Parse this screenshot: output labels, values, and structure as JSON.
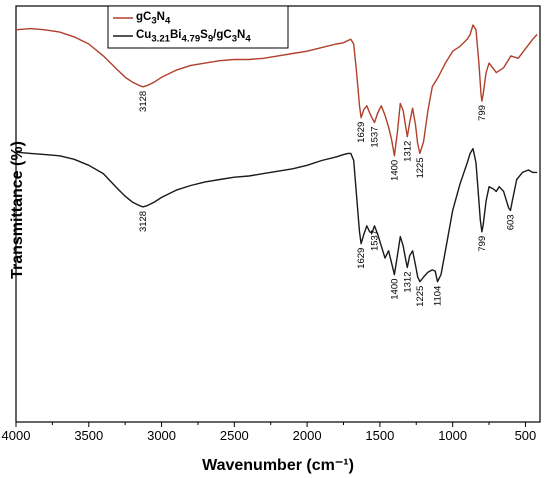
{
  "chart_data": {
    "type": "line",
    "xlabel": "Wavenumber (cm⁻¹)",
    "ylabel": "Transmittance (%)",
    "xlim": [
      4000,
      400
    ],
    "x_ticks": [
      "4000",
      "3500",
      "3000",
      "2500",
      "2000",
      "1500",
      "1000",
      "500"
    ],
    "y_ticks_labeled": false,
    "grid": false,
    "legend_position": "top-left",
    "series": [
      {
        "name": "gC3N4",
        "name_html": "gC<sub>3</sub>N<sub>4</sub>",
        "color": "#b0402b",
        "x": [
          4000,
          3900,
          3800,
          3700,
          3600,
          3500,
          3400,
          3300,
          3250,
          3200,
          3150,
          3128,
          3100,
          3050,
          3000,
          2900,
          2800,
          2700,
          2600,
          2500,
          2400,
          2300,
          2200,
          2100,
          2000,
          1900,
          1800,
          1750,
          1720,
          1700,
          1680,
          1660,
          1640,
          1629,
          1610,
          1590,
          1570,
          1555,
          1537,
          1515,
          1490,
          1465,
          1440,
          1420,
          1400,
          1380,
          1360,
          1340,
          1325,
          1312,
          1295,
          1275,
          1255,
          1240,
          1225,
          1200,
          1170,
          1140,
          1100,
          1050,
          1000,
          950,
          900,
          880,
          860,
          840,
          820,
          805,
          799,
          790,
          770,
          750,
          700,
          650,
          600,
          550,
          500,
          450,
          420
        ],
        "y": [
          90,
          90.5,
          90,
          89,
          87,
          84,
          79,
          73,
          70,
          68,
          66.5,
          66,
          66.5,
          68,
          70,
          73,
          75,
          76,
          77,
          77.5,
          77.5,
          78,
          79,
          80,
          81,
          82.5,
          84,
          84.5,
          85.5,
          86,
          84,
          72,
          58,
          53,
          56.5,
          58,
          55,
          53,
          51,
          55,
          58,
          54,
          49,
          44,
          37,
          47,
          59,
          56,
          50,
          45,
          51,
          57,
          50,
          42,
          38,
          43,
          56,
          66,
          70,
          76,
          81,
          83,
          86,
          88,
          92,
          90,
          76,
          63,
          60,
          63,
          72,
          76,
          72,
          74,
          79,
          78,
          82,
          86,
          88
        ]
      },
      {
        "name": "Cu3.21Bi4.79S9/gC3N4",
        "name_html": "Cu<sub>3.21</sub>Bi<sub>4.79</sub>S<sub>9</sub>/gC<sub>3</sub>N<sub>4</sub>",
        "color": "#1a1a1a",
        "x": [
          4000,
          3900,
          3800,
          3700,
          3600,
          3500,
          3400,
          3300,
          3250,
          3200,
          3150,
          3128,
          3100,
          3050,
          3000,
          2900,
          2800,
          2700,
          2600,
          2500,
          2400,
          2300,
          2200,
          2100,
          2000,
          1900,
          1800,
          1750,
          1720,
          1700,
          1680,
          1660,
          1640,
          1629,
          1610,
          1590,
          1570,
          1555,
          1537,
          1515,
          1490,
          1465,
          1440,
          1420,
          1400,
          1380,
          1360,
          1340,
          1325,
          1312,
          1295,
          1275,
          1255,
          1240,
          1225,
          1200,
          1170,
          1140,
          1120,
          1104,
          1080,
          1050,
          1000,
          950,
          900,
          880,
          860,
          840,
          820,
          810,
          799,
          790,
          770,
          750,
          720,
          700,
          680,
          650,
          630,
          615,
          603,
          590,
          560,
          520,
          480,
          450,
          420
        ],
        "y": [
          38.5,
          38,
          37.5,
          37,
          35.5,
          33,
          29.5,
          23,
          20,
          17.5,
          16,
          15.5,
          16,
          17.5,
          19.5,
          22.5,
          24.5,
          26,
          27,
          28,
          28.5,
          29.5,
          30.5,
          31.5,
          33,
          35,
          36.5,
          37.5,
          38,
          38,
          35,
          20,
          5,
          0,
          4,
          7.5,
          5,
          4.5,
          7.5,
          4,
          -1,
          -6,
          -3,
          -8,
          -13,
          -5,
          3,
          -1,
          -6,
          -10,
          -5,
          -3,
          -9,
          -14,
          -16,
          -14,
          -12,
          -11,
          -11.5,
          -16,
          -13,
          -3,
          14,
          25,
          34,
          38,
          40,
          34,
          18,
          10,
          5,
          8,
          18,
          24,
          23,
          22,
          24,
          22,
          18,
          15,
          14,
          18,
          27,
          30,
          31,
          30,
          30
        ]
      }
    ],
    "annotations": [
      {
        "text": "3128",
        "series": 0,
        "x": 3128
      },
      {
        "text": "1629",
        "series": 0,
        "x": 1629
      },
      {
        "text": "1537",
        "series": 0,
        "x": 1537
      },
      {
        "text": "1400",
        "series": 0,
        "x": 1400
      },
      {
        "text": "1312",
        "series": 0,
        "x": 1312
      },
      {
        "text": "1225",
        "series": 0,
        "x": 1225
      },
      {
        "text": "799",
        "series": 0,
        "x": 799
      },
      {
        "text": "3128",
        "series": 1,
        "x": 3128
      },
      {
        "text": "1629",
        "series": 1,
        "x": 1629
      },
      {
        "text": "1537",
        "series": 1,
        "x": 1537
      },
      {
        "text": "1400",
        "series": 1,
        "x": 1400
      },
      {
        "text": "1312",
        "series": 1,
        "x": 1312
      },
      {
        "text": "1225",
        "series": 1,
        "x": 1225
      },
      {
        "text": "1104",
        "series": 1,
        "x": 1104
      },
      {
        "text": "799",
        "series": 1,
        "x": 799
      },
      {
        "text": "603",
        "series": 1,
        "x": 603
      }
    ]
  }
}
